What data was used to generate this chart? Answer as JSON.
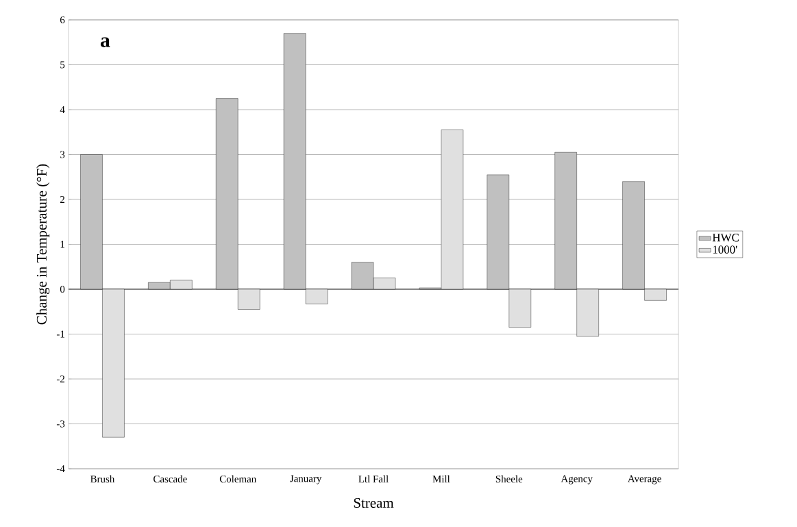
{
  "chart_data": {
    "type": "bar",
    "title": "a",
    "xlabel": "Stream",
    "ylabel": "Change in Temperature (°F)",
    "categories": [
      "Brush",
      "Cascade",
      "Coleman",
      "January",
      "Ltl Fall",
      "Mill",
      "Sheele",
      "Agency",
      "Average"
    ],
    "series": [
      {
        "name": "HWC",
        "color": "#c0c0c0",
        "values": [
          3.0,
          0.15,
          4.25,
          5.7,
          0.6,
          0.03,
          2.55,
          3.05,
          2.4
        ]
      },
      {
        "name": "1000'",
        "color": "#e0e0e0",
        "values": [
          -3.3,
          0.2,
          -0.45,
          -0.33,
          0.25,
          3.55,
          -0.85,
          -1.05,
          -0.25
        ]
      }
    ],
    "ylim": [
      -4,
      6
    ],
    "yticks": [
      -4,
      -3,
      -2,
      -1,
      0,
      1,
      2,
      3,
      4,
      5,
      6
    ],
    "grid": "y",
    "legend": "right"
  }
}
